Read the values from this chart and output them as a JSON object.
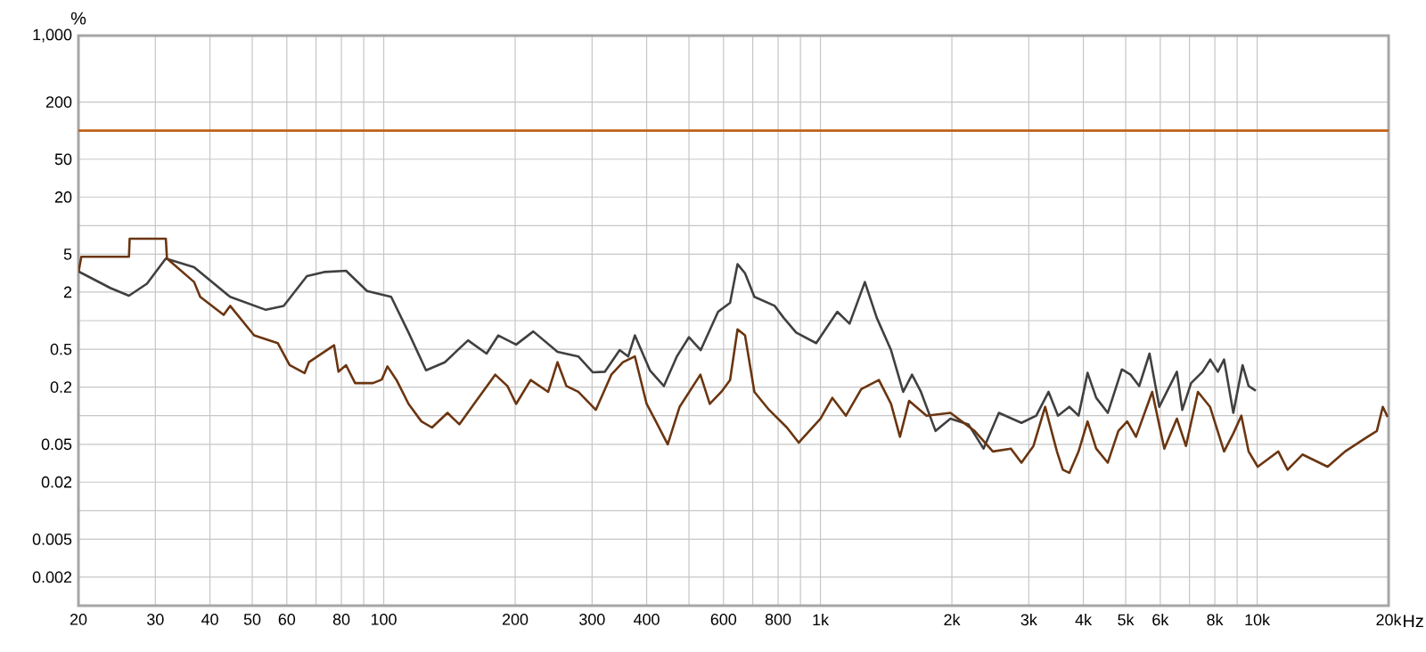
{
  "chart_data": {
    "type": "line",
    "ylabel": "%",
    "log": "xy",
    "grid": true,
    "xlim": [
      20,
      20000
    ],
    "ylim": [
      0.001,
      1000
    ],
    "xticks": [
      20,
      30,
      40,
      50,
      60,
      {
        "value": 70,
        "label": null
      },
      80,
      {
        "value": 90,
        "label": null
      },
      100,
      200,
      300,
      400,
      {
        "value": 500,
        "label": null
      },
      600,
      {
        "value": 700,
        "label": null
      },
      800,
      {
        "value": 900,
        "label": null
      },
      {
        "value": 1000,
        "label": "1k"
      },
      {
        "value": 2000,
        "label": "2k"
      },
      {
        "value": 3000,
        "label": "3k"
      },
      {
        "value": 4000,
        "label": "4k"
      },
      {
        "value": 5000,
        "label": "5k"
      },
      {
        "value": 6000,
        "label": "6k"
      },
      {
        "value": 7000,
        "label": null
      },
      {
        "value": 8000,
        "label": "8k"
      },
      {
        "value": 9000,
        "label": null
      },
      {
        "value": 10000,
        "label": "10k"
      },
      {
        "value": 20000,
        "label": "20k"
      }
    ],
    "xlabel": "Hz",
    "yticks": [
      {
        "value": 1000,
        "label": "1,000"
      },
      200,
      {
        "value": 100,
        "label": null
      },
      50,
      20,
      {
        "value": 10,
        "label": null
      },
      5,
      2,
      {
        "value": 1,
        "label": null
      },
      0.5,
      0.2,
      {
        "value": 0.1,
        "label": null
      },
      0.05,
      0.02,
      {
        "value": 0.01,
        "label": null
      },
      0.005,
      0.002
    ],
    "series": [
      {
        "color": "#c0601a",
        "x": [
          20,
          20000
        ],
        "values": [
          100,
          100
        ]
      },
      {
        "color": "#404040",
        "x": [
          20,
          23.7,
          26.1,
          28.7,
          31.7,
          36.8,
          44.5,
          53.7,
          59,
          66.7,
          73,
          82,
          91.6,
          104,
          114,
          125,
          138,
          156,
          172,
          183,
          201,
          220,
          250,
          279,
          301,
          321,
          347,
          363,
          376,
          407,
          438,
          469,
          500,
          532,
          583,
          621,
          646,
          672,
          706,
          786,
          824,
          880,
          978,
          1093,
          1166,
          1264,
          1346,
          1451,
          1547,
          1621,
          1699,
          1835,
          1985,
          2182,
          2363,
          2562,
          2886,
          3121,
          3330,
          3500,
          3715,
          3900,
          4090,
          4280,
          4550,
          4900,
          5130,
          5370,
          5670,
          5970,
          6550,
          6740,
          7060,
          7500,
          7810,
          8130,
          8400,
          8820,
          9260,
          9560,
          9930
        ],
        "values": [
          3.3,
          2.2,
          1.83,
          2.45,
          4.5,
          3.65,
          1.78,
          1.3,
          1.43,
          2.94,
          3.25,
          3.35,
          2.05,
          1.78,
          0.75,
          0.3,
          0.365,
          0.62,
          0.45,
          0.7,
          0.56,
          0.77,
          0.47,
          0.42,
          0.286,
          0.29,
          0.49,
          0.42,
          0.7,
          0.3,
          0.205,
          0.42,
          0.67,
          0.49,
          1.24,
          1.54,
          3.93,
          3.16,
          1.78,
          1.43,
          1.07,
          0.75,
          0.58,
          1.24,
          0.93,
          2.55,
          1.07,
          0.49,
          0.178,
          0.27,
          0.178,
          0.069,
          0.093,
          0.081,
          0.045,
          0.107,
          0.084,
          0.1,
          0.178,
          0.1,
          0.124,
          0.1,
          0.282,
          0.154,
          0.107,
          0.307,
          0.27,
          0.205,
          0.45,
          0.124,
          0.29,
          0.115,
          0.22,
          0.29,
          0.39,
          0.29,
          0.39,
          0.107,
          0.34,
          0.205,
          0.183
        ]
      },
      {
        "color": "#6b3510",
        "x": [
          20,
          20.3,
          26.1,
          26.2,
          31.7,
          31.9,
          36.8,
          38,
          43,
          44.5,
          50.5,
          57.2,
          60.9,
          65.9,
          67.4,
          77,
          78.8,
          82,
          86,
          94.5,
          99,
          102,
          107,
          114,
          122,
          129,
          140,
          149,
          161,
          180,
          192,
          201,
          217,
          238,
          250,
          262,
          279,
          306,
          332,
          353,
          376,
          400,
          420,
          447,
          476,
          531,
          558,
          593,
          621,
          646,
          672,
          706,
          763,
          838,
          892,
          1000,
          1065,
          1144,
          1240,
          1361,
          1451,
          1521,
          1596,
          1750,
          1985,
          2255,
          2482,
          2730,
          2886,
          3075,
          3270,
          3480,
          3590,
          3715,
          3900,
          4090,
          4280,
          4550,
          4810,
          5040,
          5280,
          5750,
          6130,
          6550,
          6870,
          7320,
          7800,
          8400,
          8820,
          9200,
          9560,
          10030,
          11180,
          11740,
          12700,
          14500,
          15900,
          17900,
          18800,
          19400,
          19900
        ],
        "values": [
          3.2,
          4.7,
          4.7,
          7.3,
          7.3,
          4.5,
          2.55,
          1.78,
          1.15,
          1.43,
          0.7,
          0.58,
          0.34,
          0.28,
          0.365,
          0.55,
          0.29,
          0.34,
          0.22,
          0.22,
          0.24,
          0.33,
          0.237,
          0.133,
          0.087,
          0.075,
          0.107,
          0.081,
          0.133,
          0.27,
          0.205,
          0.133,
          0.237,
          0.178,
          0.365,
          0.205,
          0.178,
          0.115,
          0.27,
          0.365,
          0.42,
          0.133,
          0.087,
          0.05,
          0.124,
          0.27,
          0.133,
          0.178,
          0.237,
          0.81,
          0.7,
          0.178,
          0.115,
          0.075,
          0.052,
          0.093,
          0.154,
          0.1,
          0.19,
          0.237,
          0.133,
          0.06,
          0.143,
          0.1,
          0.107,
          0.069,
          0.042,
          0.045,
          0.032,
          0.048,
          0.124,
          0.042,
          0.027,
          0.025,
          0.042,
          0.087,
          0.045,
          0.032,
          0.069,
          0.087,
          0.06,
          0.178,
          0.045,
          0.093,
          0.048,
          0.178,
          0.124,
          0.042,
          0.065,
          0.1,
          0.042,
          0.029,
          0.042,
          0.027,
          0.039,
          0.029,
          0.042,
          0.06,
          0.069,
          0.124,
          0.097
        ]
      }
    ]
  }
}
